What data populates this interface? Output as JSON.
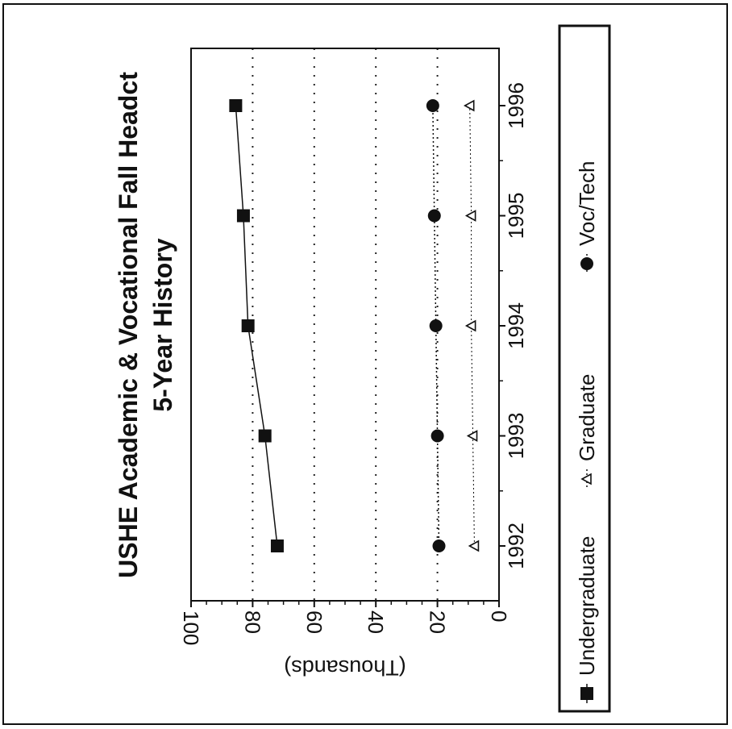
{
  "chart_data": {
    "type": "line",
    "title": "USHE Academic & Vocational Fall Headct",
    "subtitle": "5-Year History",
    "xlabel": "",
    "ylabel": "(Thousands)",
    "categories": [
      "1992",
      "1993",
      "1994",
      "1995",
      "1996"
    ],
    "ylim": [
      0,
      100
    ],
    "yticks": [
      0,
      20,
      40,
      60,
      80,
      100
    ],
    "ytick_labels": [
      "0",
      "20",
      "40",
      "60",
      "80",
      "100"
    ],
    "grid": "horizontal dotted",
    "legend": "bottom",
    "orientation": "rotated 90 degrees clockwise",
    "series": [
      {
        "name": "Undergraduate",
        "values": [
          72,
          76,
          81.5,
          83,
          85.5
        ],
        "marker": "square",
        "color": "#111111"
      },
      {
        "name": "Graduate",
        "values": [
          8,
          8.5,
          9,
          9,
          9.5
        ],
        "marker": "triangle",
        "color": "#111111"
      },
      {
        "name": "Voc/Tech",
        "values": [
          19.5,
          20,
          20.5,
          21,
          21.5
        ],
        "marker": "circle",
        "color": "#111111"
      }
    ]
  }
}
